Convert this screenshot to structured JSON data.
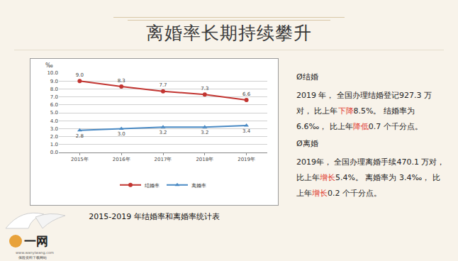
{
  "slide": {
    "title": "离婚率长期持续攀升",
    "caption": "2015-2019 年结婚率和离婚率统计表",
    "sections": [
      {
        "heading": "Ø结婚",
        "segments": [
          {
            "text": "2019 年，  全国办理结婚登记927.3 万对，  比上年"
          },
          {
            "text": "下降",
            "color": "#e03c31"
          },
          {
            "text": "8.5%。  结婚率为 6.6‰，  比上年"
          },
          {
            "text": "降低",
            "color": "#e03c31"
          },
          {
            "text": "0.7 个千分点。"
          }
        ]
      },
      {
        "heading": "Ø离婚",
        "segments": [
          {
            "text": "2019年，  全国办理离婚手续470.1 万对，  比上年"
          },
          {
            "text": "增长",
            "color": "#e03c31"
          },
          {
            "text": "5.4%。  离婚率为 3.4‰，  比上年"
          },
          {
            "text": "增长",
            "color": "#e03c31"
          },
          {
            "text": "0.2 个千分点。"
          }
        ]
      }
    ],
    "logo": {
      "text": "一网",
      "url": "www.wanyiwang.com",
      "tagline": "保险资料下载网站"
    }
  },
  "chart_data": {
    "type": "line",
    "ylabel": "‰",
    "categories": [
      "2015年",
      "2016年",
      "2017年",
      "2018年",
      "2019年"
    ],
    "series": [
      {
        "name": "结婚率",
        "color": "#c23531",
        "marker": "circle",
        "values": [
          9.0,
          8.3,
          7.7,
          7.3,
          6.6
        ],
        "value_labels": [
          "9.0",
          "8.3",
          "7.7",
          "7.3",
          "6.6"
        ]
      },
      {
        "name": "离婚率",
        "color": "#4a8ac4",
        "marker": "triangle-up",
        "values": [
          2.8,
          3.0,
          3.2,
          3.2,
          3.4
        ],
        "value_labels": [
          "2.8",
          "3.0",
          "3.2",
          "3.2",
          "3.4"
        ]
      }
    ],
    "ylim": [
      0,
      10
    ],
    "yticks": [
      {
        "value": 0,
        "label": "0.0"
      },
      {
        "value": 1,
        "label": "1.0"
      },
      {
        "value": 2,
        "label": "2.0"
      },
      {
        "value": 3,
        "label": "3.0"
      },
      {
        "value": 4,
        "label": "4.0"
      },
      {
        "value": 5,
        "label": "5.0"
      },
      {
        "value": 6,
        "label": "6.0"
      },
      {
        "value": 7,
        "label": "7.0"
      },
      {
        "value": 8,
        "label": "8.0"
      },
      {
        "value": 9,
        "label": "9.0"
      },
      {
        "value": 10,
        "label": "10.0"
      }
    ],
    "grid": true,
    "legend": "bottom",
    "data_labels": true
  }
}
